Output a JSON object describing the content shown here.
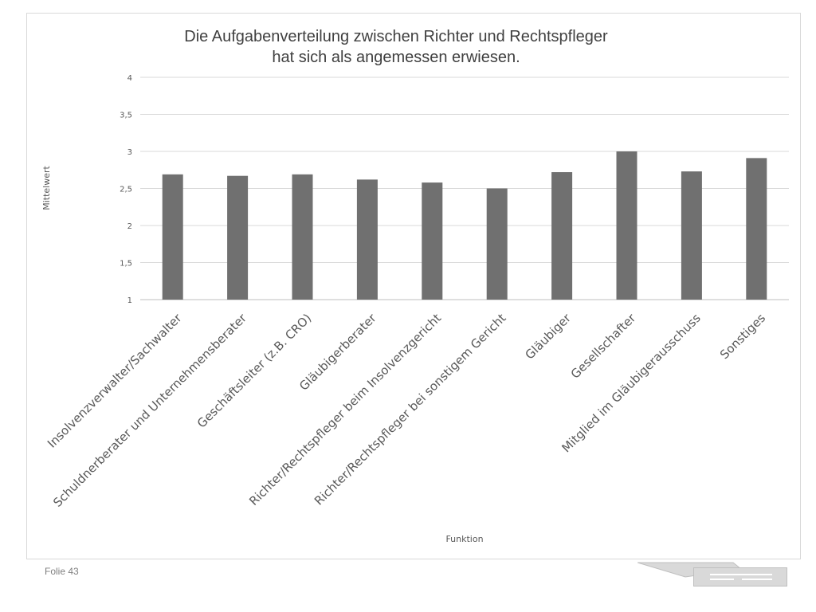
{
  "slide": {
    "footer": "Folie 43"
  },
  "chart_data": {
    "type": "bar",
    "title_lines": [
      "Die  Aufgabenverteilung zwischen Richter und Rechtspfleger",
      "hat sich als angemessen erwiesen."
    ],
    "xlabel": "Funktion",
    "ylabel": "Mittelwert",
    "ylim": [
      1,
      4
    ],
    "yticks": [
      1,
      1.5,
      2,
      2.5,
      3,
      3.5,
      4
    ],
    "ytick_labels": [
      "1",
      "1,5",
      "2",
      "2,5",
      "3",
      "3,5",
      "4"
    ],
    "grid": true,
    "legend": "none",
    "bar_color": "#707070",
    "categories": [
      "Insolvenzverwalter/Sachwalter",
      "Schuldnerberater und Unternehmensberater",
      "Geschäftsleiter (z.B. CRO)",
      "Gläubigerberater",
      "Richter/Rechtspfleger beim Insolvenzgericht",
      "Richter/Rechtspfleger bei sonstigem Gericht",
      "Gläubiger",
      "Gesellschafter",
      "Mitglied im Gläubigerausschuss",
      "Sonstiges"
    ],
    "values": [
      2.69,
      2.67,
      2.69,
      2.62,
      2.58,
      2.5,
      2.72,
      3.0,
      2.73,
      2.91
    ]
  }
}
